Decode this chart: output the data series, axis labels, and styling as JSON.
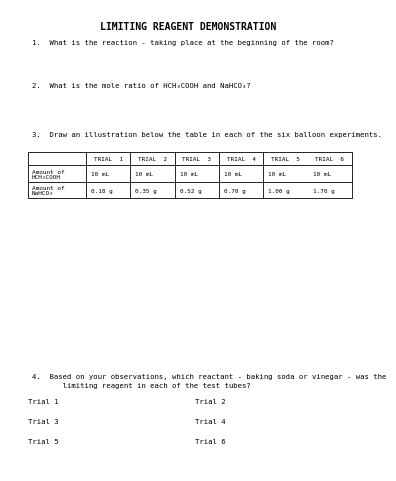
{
  "title": "LIMITING REAGENT DEMONSTRATION",
  "q1": "1.  What is the reaction - taking place at the beginning of the room?",
  "q2": "2.  What is the mole ratio of HCH₃COOH and NaHCO₃?",
  "q3": "3.  Draw an illustration below the table in each of the six balloon experiments.",
  "table_headers": [
    "TRIAL  1",
    "TRIAL  2",
    "TRIAL  3",
    "TRIAL  4",
    "TRIAL  5",
    "TRIAL  6"
  ],
  "row1_label_a": "Amount of",
  "row1_label_b": "HCH₃COOH",
  "row1_values": [
    "10 mL",
    "10 mL",
    "10 mL",
    "10 mL",
    "10 mL",
    "10 mL"
  ],
  "row2_label_a": "Amount of",
  "row2_label_b": "NaHCO₃",
  "row2_values": [
    "0.18 g",
    "0.35 g",
    "0.52 g",
    "0.70 g",
    "1.00 g",
    "1.70 g"
  ],
  "q4_line1": "4.  Based on your observations, which reactant - baking soda or vinegar - was the",
  "q4_line2": "       limiting reagent in each of the test tubes?",
  "trial_labels": [
    "Trial 1",
    "Trial 2",
    "Trial 3",
    "Trial 4",
    "Trial 5",
    "Trial 6"
  ],
  "bg_color": "#ffffff",
  "text_color": "#000000"
}
